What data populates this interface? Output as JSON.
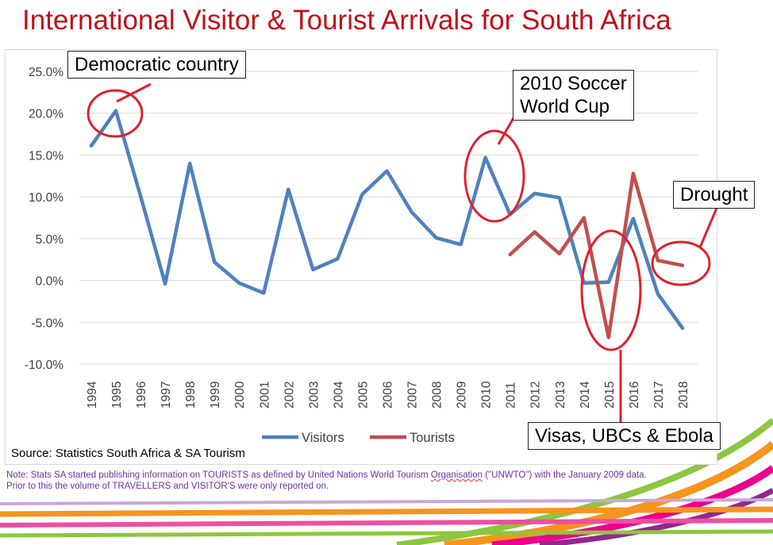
{
  "title": "International Visitor & Tourist Arrivals for South Africa",
  "source": "Source: Statistics South Africa & SA Tourism",
  "note": {
    "before": "Note: Stats SA started publishing information on TOURISTS as defined by United Nations World Tourism ",
    "underlined": "Organisation",
    "after": " (\"UNWTO\") with the January 2009 data. Prior to this the volume of TRAVELLERS and VISITOR'S were only reported on."
  },
  "callouts": {
    "democratic": "Democratic country",
    "soccer_line1": "2010 Soccer",
    "soccer_line2": "World Cup",
    "drought": "Drought",
    "visas": "Visas, UBCs & Ebola"
  },
  "colors": {
    "visitors": "#4f81bd",
    "tourists": "#c0504d",
    "title": "#c0101a",
    "annotation": "#e0202a",
    "note": "#7030a0"
  },
  "chart_data": {
    "type": "line",
    "x": [
      "1994",
      "1995",
      "1996",
      "1997",
      "1998",
      "1999",
      "2000",
      "2001",
      "2002",
      "2003",
      "2004",
      "2005",
      "2006",
      "2007",
      "2008",
      "2009",
      "2010",
      "2011",
      "2012",
      "2013",
      "2014",
      "2015",
      "2016",
      "2017",
      "2018"
    ],
    "ylim": [
      -10,
      25
    ],
    "y_ticks": [
      "25.0%",
      "20.0%",
      "15.0%",
      "10.0%",
      "5.0%",
      "0.0%",
      "-5.0%",
      "-10.0%"
    ],
    "grid": true,
    "legend": "bottom",
    "series": [
      {
        "name": "Visitors",
        "values": [
          16.1,
          20.3,
          10.1,
          -0.4,
          14.0,
          2.2,
          -0.3,
          -1.5,
          10.9,
          1.3,
          2.6,
          10.3,
          13.1,
          8.2,
          5.1,
          4.3,
          14.7,
          7.9,
          10.4,
          9.9,
          -0.3,
          -0.2,
          7.4,
          -1.6,
          -5.7
        ]
      },
      {
        "name": "Tourists",
        "values": [
          null,
          null,
          null,
          null,
          null,
          null,
          null,
          null,
          null,
          null,
          null,
          null,
          null,
          null,
          null,
          null,
          null,
          3.1,
          5.8,
          3.2,
          7.5,
          -6.8,
          12.8,
          2.4,
          1.8
        ]
      }
    ]
  }
}
